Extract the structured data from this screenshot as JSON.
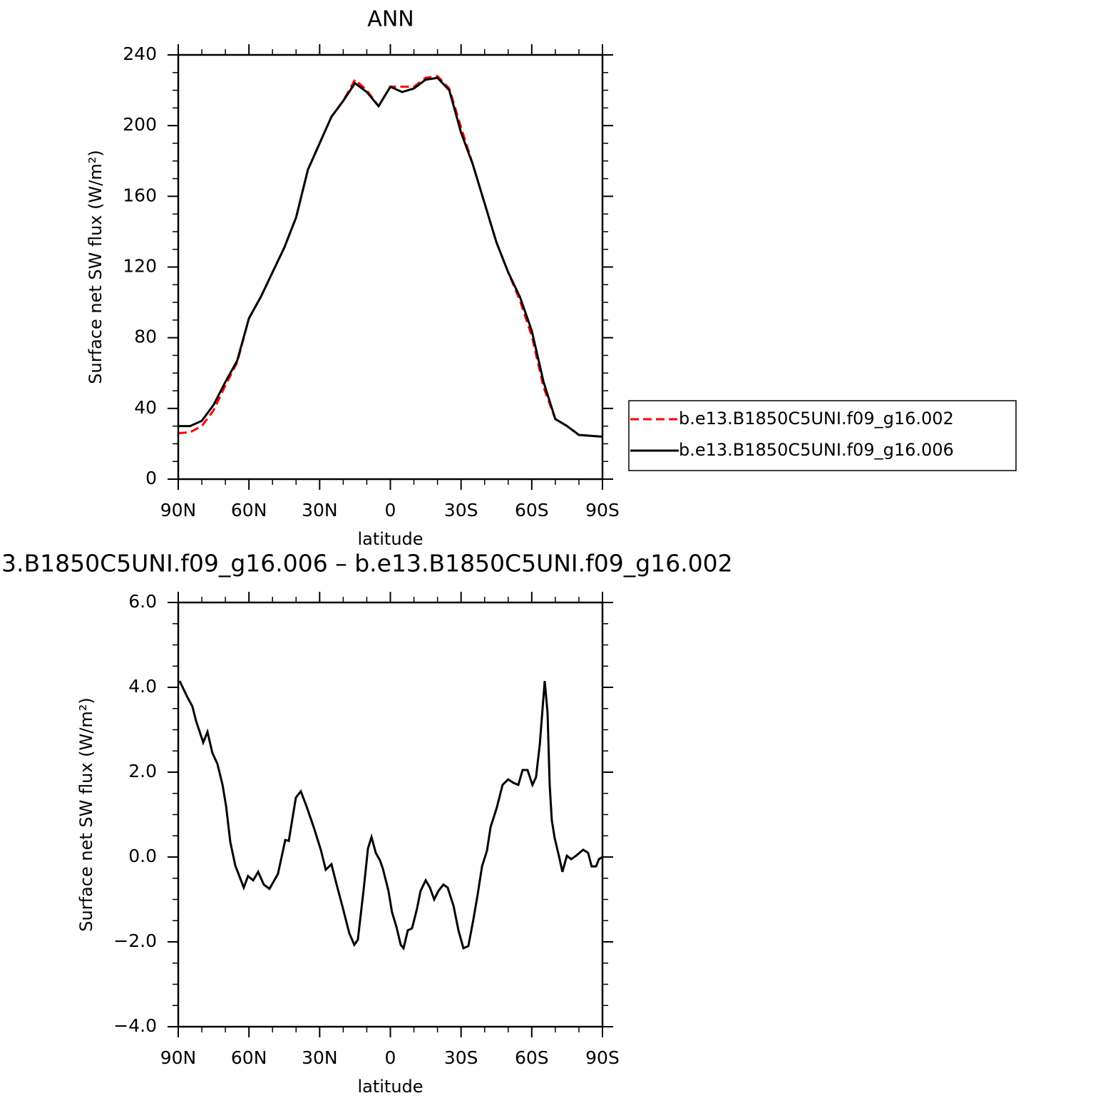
{
  "chart_data": [
    {
      "type": "line",
      "title": "ANN",
      "xlabel": "latitude",
      "ylabel": "Surface net SW flux (W/m²)",
      "x": [
        90,
        85,
        80,
        75,
        70,
        65,
        60,
        55,
        50,
        45,
        40,
        35,
        30,
        25,
        20,
        15,
        10,
        5,
        0,
        -5,
        -10,
        -15,
        -20,
        -25,
        -30,
        -35,
        -40,
        -45,
        -50,
        -55,
        -60,
        -65,
        -70,
        -75,
        -80,
        -85,
        -90
      ],
      "series": [
        {
          "name": "b.e13.B1850C5UNI.f09_g16.002",
          "color": "#ff0000",
          "linestyle": "dashed",
          "values": [
            26,
            26.5,
            30,
            39,
            53,
            66,
            91,
            103,
            117,
            131,
            148,
            175,
            190,
            205,
            214,
            226,
            220,
            211,
            222,
            222,
            222,
            227,
            228,
            221,
            199,
            178,
            156,
            134,
            117,
            101,
            81,
            52,
            34,
            30,
            25,
            24.5,
            24
          ]
        },
        {
          "name": "b.e13.B1850C5UNI.f09_g16.006",
          "color": "#000000",
          "linestyle": "solid",
          "values": [
            30,
            30,
            33,
            42,
            55,
            67,
            91,
            103,
            117,
            131,
            148,
            175,
            190,
            205,
            214,
            224,
            219,
            211,
            222,
            219,
            221,
            226,
            227,
            220,
            196,
            178,
            156,
            134,
            117,
            103,
            84,
            55,
            34,
            30,
            25,
            24.5,
            24
          ]
        }
      ],
      "xlim": [
        90,
        -90
      ],
      "xticks": [
        {
          "value": 90,
          "label": "90N"
        },
        {
          "value": 60,
          "label": "60N"
        },
        {
          "value": 30,
          "label": "30N"
        },
        0,
        {
          "value": -30,
          "label": "30S"
        },
        {
          "value": -60,
          "label": "60S"
        },
        {
          "value": -90,
          "label": "90S"
        }
      ],
      "ylim": [
        0,
        240
      ],
      "yticks": [
        0,
        40,
        80,
        120,
        160,
        200,
        240
      ],
      "legend": "right"
    },
    {
      "type": "line",
      "title": "3.B1850C5UNI.f09_g16.006 – b.e13.B1850C5UNI.f09_g16.002",
      "xlabel": "latitude",
      "ylabel": "Surface net SW flux (W/m²)",
      "x": [
        89.4,
        86.4,
        84,
        82.4,
        79.4,
        77.6,
        75.5,
        73.4,
        71.2,
        69.7,
        67.9,
        65.8,
        62.2,
        60.4,
        58.2,
        56.1,
        53.7,
        51.3,
        47.7,
        44.6,
        43.1,
        40.1,
        38,
        35.6,
        32.5,
        29.5,
        27.4,
        25,
        22.8,
        20.4,
        17.4,
        15.3,
        13.8,
        11.4,
        9.5,
        8,
        6.2,
        4.4,
        3.2,
        0.8,
        -0.7,
        -2.6,
        -4.4,
        -5.6,
        -7.4,
        -9.2,
        -11.3,
        -12.8,
        -15,
        -16.8,
        -18.6,
        -20.4,
        -22.5,
        -24.3,
        -26.8,
        -28.9,
        -31,
        -33.1,
        -35.2,
        -37,
        -38.9,
        -41,
        -42.5,
        -45.2,
        -47.6,
        -50,
        -52.2,
        -54.3,
        -56.1,
        -58.2,
        -60.3,
        -61.8,
        -63.4,
        -65.5,
        -66.7,
        -67.6,
        -68.5,
        -69.7,
        -71.5,
        -73,
        -74.9,
        -76.7,
        -78.8,
        -81.8,
        -83.9,
        -85.4,
        -87.3,
        -88.5,
        -90
      ],
      "values": [
        4.15,
        3.8,
        3.55,
        3.2,
        2.7,
        2.95,
        2.45,
        2.2,
        1.7,
        1.2,
        0.35,
        -0.2,
        -0.72,
        -0.45,
        -0.55,
        -0.35,
        -0.65,
        -0.75,
        -0.4,
        0.4,
        0.38,
        1.4,
        1.55,
        1.2,
        0.7,
        0.17,
        -0.3,
        -0.17,
        -0.65,
        -1.15,
        -1.8,
        -2.07,
        -1.95,
        -0.8,
        0.2,
        0.47,
        0.1,
        -0.08,
        -0.27,
        -0.8,
        -1.3,
        -1.65,
        -2.07,
        -2.15,
        -1.73,
        -1.68,
        -1.22,
        -0.8,
        -0.55,
        -0.72,
        -1.0,
        -0.8,
        -0.65,
        -0.72,
        -1.15,
        -1.73,
        -2.15,
        -2.1,
        -1.48,
        -0.9,
        -0.22,
        0.15,
        0.7,
        1.17,
        1.7,
        1.83,
        1.75,
        1.7,
        2.05,
        2.05,
        1.7,
        1.88,
        2.65,
        4.15,
        3.4,
        1.7,
        0.87,
        0.45,
        0.03,
        -0.35,
        0.03,
        -0.05,
        0.03,
        0.17,
        0.1,
        -0.22,
        -0.22,
        -0.05,
        0
      ],
      "color": "#000000",
      "xlim": [
        90,
        -90
      ],
      "xticks": [
        {
          "value": 90,
          "label": "90N"
        },
        {
          "value": 60,
          "label": "60N"
        },
        {
          "value": 30,
          "label": "30N"
        },
        0,
        {
          "value": -30,
          "label": "30S"
        },
        {
          "value": -60,
          "label": "60S"
        },
        {
          "value": -90,
          "label": "90S"
        }
      ],
      "ylim": [
        -4,
        6
      ],
      "yticks": [
        {
          "value": -4,
          "label": "−4.0"
        },
        {
          "value": -2,
          "label": "−2.0"
        },
        {
          "value": 0,
          "label": "0.0"
        },
        {
          "value": 2,
          "label": "2.0"
        },
        {
          "value": 4,
          "label": "4.0"
        },
        {
          "value": 6,
          "label": "6.0"
        }
      ]
    }
  ]
}
